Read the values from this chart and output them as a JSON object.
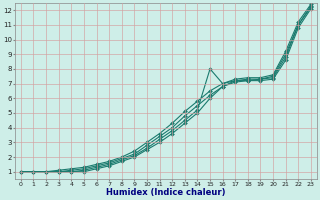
{
  "title": "",
  "xlabel": "Humidex (Indice chaleur)",
  "bg_color": "#ceeee8",
  "grid_color": "#d4a0a0",
  "line_color": "#1a7a6e",
  "xlim": [
    -0.5,
    23.5
  ],
  "ylim": [
    0.5,
    12.5
  ],
  "xticks": [
    0,
    1,
    2,
    3,
    4,
    5,
    6,
    7,
    8,
    9,
    10,
    11,
    12,
    13,
    14,
    15,
    16,
    17,
    18,
    19,
    20,
    21,
    22,
    23
  ],
  "yticks": [
    1,
    2,
    3,
    4,
    5,
    6,
    7,
    8,
    9,
    10,
    11,
    12
  ],
  "series": [
    {
      "x": [
        0,
        1,
        2,
        3,
        4,
        5,
        6,
        7,
        8,
        9,
        10,
        11,
        12,
        13,
        14,
        15,
        16,
        17,
        18,
        19,
        20,
        21,
        22,
        23
      ],
      "y": [
        1,
        1,
        1,
        1,
        1.1,
        1.2,
        1.4,
        1.6,
        1.9,
        2.2,
        2.8,
        3.4,
        4.0,
        4.8,
        5.5,
        6.2,
        6.8,
        7.2,
        7.3,
        7.3,
        7.5,
        9.0,
        11.0,
        12.2
      ]
    },
    {
      "x": [
        0,
        1,
        2,
        3,
        4,
        5,
        6,
        7,
        8,
        9,
        10,
        11,
        12,
        13,
        14,
        15,
        16,
        17,
        18,
        19,
        20,
        21,
        22,
        23
      ],
      "y": [
        1,
        1,
        1,
        1.1,
        1.2,
        1.3,
        1.5,
        1.7,
        2.0,
        2.4,
        3.0,
        3.6,
        4.3,
        5.1,
        5.8,
        6.5,
        7.0,
        7.3,
        7.4,
        7.4,
        7.6,
        9.2,
        11.2,
        12.4
      ]
    },
    {
      "x": [
        0,
        1,
        2,
        3,
        4,
        5,
        6,
        7,
        8,
        9,
        10,
        11,
        12,
        13,
        14,
        15,
        16,
        17,
        18,
        19,
        20,
        21,
        22,
        23
      ],
      "y": [
        1,
        1,
        1,
        1,
        1,
        1.1,
        1.3,
        1.5,
        1.8,
        2.1,
        2.6,
        3.2,
        3.8,
        4.5,
        5.2,
        8.0,
        7.0,
        7.2,
        7.2,
        7.3,
        7.4,
        8.8,
        11.0,
        12.3
      ]
    },
    {
      "x": [
        0,
        1,
        2,
        3,
        4,
        5,
        6,
        7,
        8,
        9,
        10,
        11,
        12,
        13,
        14,
        15,
        16,
        17,
        18,
        19,
        20,
        21,
        22,
        23
      ],
      "y": [
        1,
        1,
        1,
        1,
        1,
        1,
        1.2,
        1.4,
        1.7,
        2.0,
        2.5,
        3.0,
        3.6,
        4.3,
        5.0,
        6.0,
        6.8,
        7.1,
        7.2,
        7.2,
        7.3,
        8.6,
        10.8,
        12.1
      ]
    }
  ]
}
